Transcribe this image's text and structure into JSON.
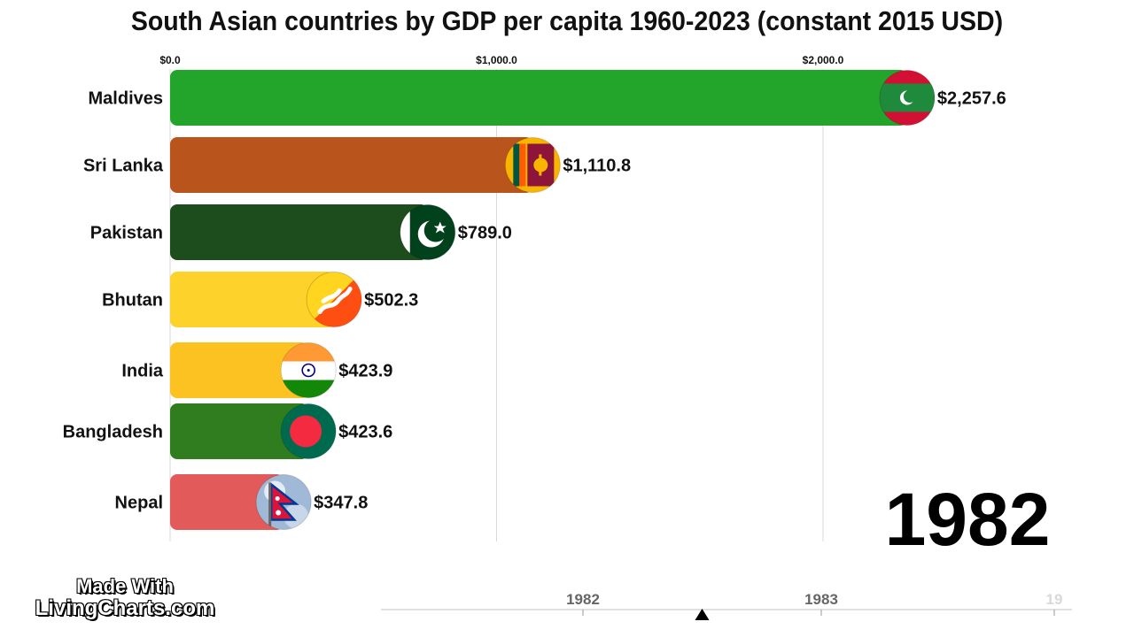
{
  "chart_data": {
    "type": "bar",
    "orientation": "horizontal",
    "title": "South Asian countries by GDP per capita 1960-2023 (constant 2015 USD)",
    "year": "1982",
    "xlim": [
      0,
      2400
    ],
    "x_ticks": [
      0,
      1000,
      2000
    ],
    "x_tick_labels": [
      "$0.0",
      "$1,000.0",
      "$2,000.0"
    ],
    "grid": true,
    "bars": [
      {
        "category": "Maldives",
        "value": 2257.6,
        "label": "$2,257.6",
        "color": "#22a52a",
        "flag": "maldives-flag-icon"
      },
      {
        "category": "Sri Lanka",
        "value": 1110.8,
        "label": "$1,110.8",
        "color": "#b9541c",
        "flag": "sri-lanka-flag-icon"
      },
      {
        "category": "Pakistan",
        "value": 789.0,
        "label": "$789.0",
        "color": "#1d4d1d",
        "flag": "pakistan-flag-icon"
      },
      {
        "category": "Bhutan",
        "value": 502.3,
        "label": "$502.3",
        "color": "#fdd22a",
        "flag": "bhutan-flag-icon"
      },
      {
        "category": "India",
        "value": 423.9,
        "label": "$423.9",
        "color": "#fbc222",
        "flag": "india-flag-icon"
      },
      {
        "category": "Bangladesh",
        "value": 423.6,
        "label": "$423.6",
        "color": "#2f7d1e",
        "flag": "bangladesh-flag-icon"
      },
      {
        "category": "Nepal",
        "value": 347.8,
        "label": "$347.8",
        "color": "#e35a5a",
        "flag": "nepal-flag-icon"
      }
    ],
    "timeline": {
      "labels": [
        "1982",
        "1983",
        "19"
      ],
      "position": 1982.5
    }
  },
  "branding": {
    "line1": "Made With",
    "line2": "LivingCharts.com"
  }
}
